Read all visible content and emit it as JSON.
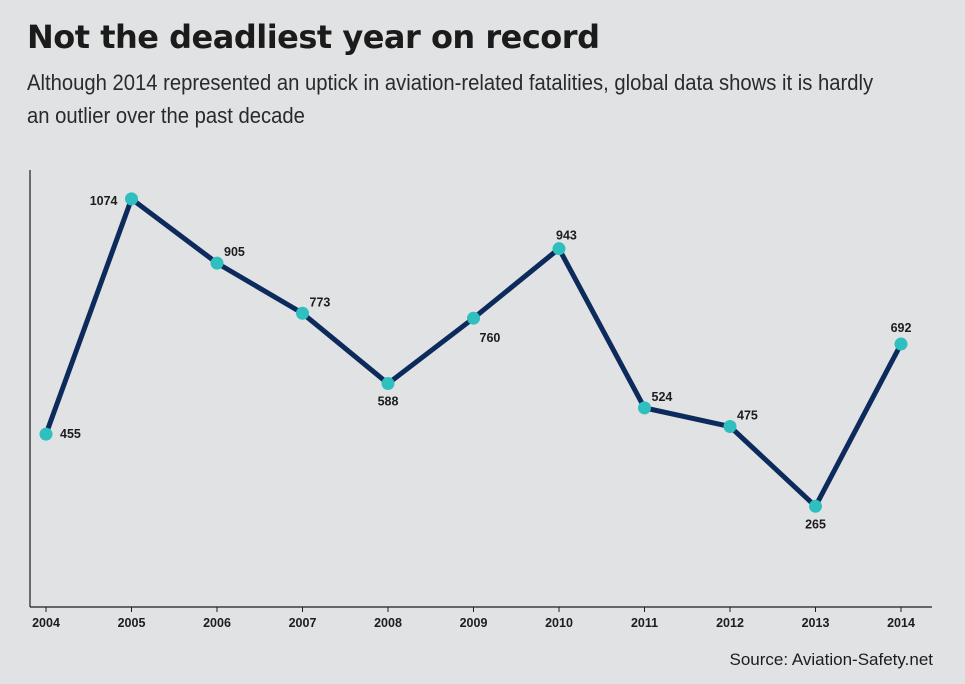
{
  "title": "Not the deadliest year on record",
  "subtitle": "Although 2014 represented an uptick in aviation-related fatalities, global data shows it is hardly an outlier over the past decade",
  "source": "Source: Aviation-Safety.net",
  "colors": {
    "background": "#e1e2e3",
    "line": "#0d2a5c",
    "marker": "#2fbfbf",
    "axis": "#1d1d1d"
  },
  "chart_data": {
    "type": "line",
    "categories": [
      "2004",
      "2005",
      "2006",
      "2007",
      "2008",
      "2009",
      "2010",
      "2011",
      "2012",
      "2013",
      "2014"
    ],
    "series": [
      {
        "values": [
          455,
          1074,
          905,
          773,
          588,
          760,
          943,
          524,
          475,
          265,
          692
        ]
      }
    ],
    "data_labels": [
      "455",
      "1074",
      "905",
      "773",
      "588",
      "760",
      "943",
      "524",
      "475",
      "265",
      "692"
    ],
    "ylim": [
      0,
      1150
    ],
    "grid": false,
    "legend": "none"
  }
}
